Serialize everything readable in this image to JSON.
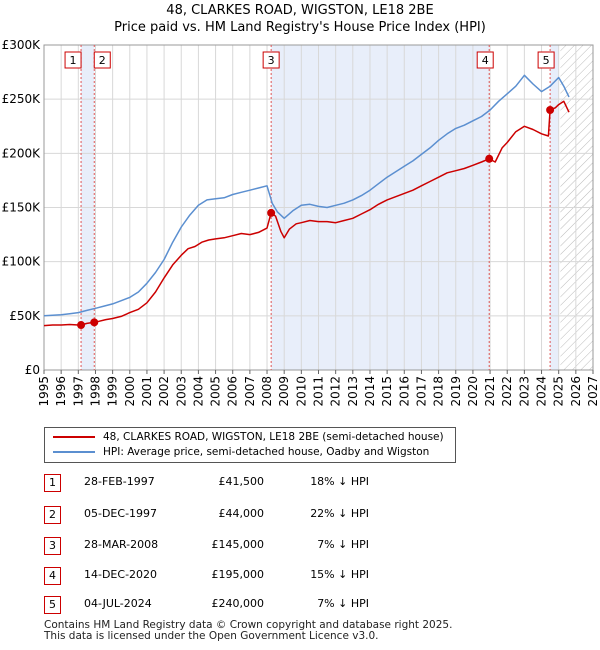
{
  "chart_data": {
    "type": "line",
    "title": "48, CLARKES ROAD, WIGSTON, LE18 2BE",
    "subtitle": "Price paid vs. HM Land Registry's House Price Index (HPI)",
    "xlim": [
      1995,
      2027
    ],
    "ylim": [
      0,
      300000
    ],
    "x_ticks": [
      "1995",
      "1996",
      "1997",
      "1998",
      "1999",
      "2000",
      "2001",
      "2002",
      "2003",
      "2004",
      "2005",
      "2006",
      "2007",
      "2008",
      "2009",
      "2010",
      "2011",
      "2012",
      "2013",
      "2014",
      "2015",
      "2016",
      "2017",
      "2018",
      "2019",
      "2020",
      "2021",
      "2022",
      "2023",
      "2024",
      "2025",
      "2026",
      "2027"
    ],
    "y_ticks": [
      {
        "value": 0,
        "label": "£0"
      },
      {
        "value": 50000,
        "label": "£50K"
      },
      {
        "value": 100000,
        "label": "£100K"
      },
      {
        "value": 150000,
        "label": "£150K"
      },
      {
        "value": 200000,
        "label": "£200K"
      },
      {
        "value": 250000,
        "label": "£250K"
      },
      {
        "value": 300000,
        "label": "£300K"
      }
    ],
    "grid": true,
    "shaded_regions": [
      {
        "from": 1997.16,
        "to": 1997.93,
        "color": "#e8eefa"
      },
      {
        "from": 2008.24,
        "to": 2020.95,
        "color": "#e8eefa"
      },
      {
        "from": 2024.5,
        "to": 2025.0,
        "color": "#e8eefa"
      }
    ],
    "future_from": 2025.1,
    "series": [
      {
        "name": "48, CLARKES ROAD, WIGSTON, LE18 2BE (semi-detached house)",
        "color": "#cc0000",
        "x": [
          1995.0,
          1995.5,
          1996.0,
          1996.5,
          1997.0,
          1997.16,
          1997.5,
          1997.93,
          1998.2,
          1998.6,
          1999.0,
          1999.5,
          2000.0,
          2000.5,
          2001.0,
          2001.5,
          2002.0,
          2002.5,
          2003.0,
          2003.4,
          2003.8,
          2004.2,
          2004.6,
          2005.0,
          2005.5,
          2006.0,
          2006.5,
          2007.0,
          2007.5,
          2008.0,
          2008.24,
          2008.5,
          2008.8,
          2009.0,
          2009.3,
          2009.7,
          2010.0,
          2010.5,
          2011.0,
          2011.5,
          2012.0,
          2012.5,
          2013.0,
          2013.5,
          2014.0,
          2014.5,
          2015.0,
          2015.5,
          2016.0,
          2016.5,
          2017.0,
          2017.5,
          2018.0,
          2018.5,
          2019.0,
          2019.5,
          2020.0,
          2020.5,
          2020.95,
          2021.3,
          2021.7,
          2022.0,
          2022.5,
          2023.0,
          2023.5,
          2024.0,
          2024.4,
          2024.5,
          2024.8,
          2025.0,
          2025.3,
          2025.6
        ],
        "y": [
          41000,
          41500,
          41500,
          42000,
          41500,
          41500,
          43000,
          44000,
          45000,
          46500,
          47500,
          49500,
          53000,
          56000,
          62000,
          72000,
          85000,
          97000,
          106000,
          112000,
          114000,
          118000,
          120000,
          121000,
          122000,
          124000,
          126000,
          125000,
          127000,
          131000,
          145000,
          142000,
          128000,
          122000,
          130000,
          135000,
          136000,
          138000,
          137000,
          137000,
          136000,
          138000,
          140000,
          144000,
          148000,
          153000,
          157000,
          160000,
          163000,
          166000,
          170000,
          174000,
          178000,
          182000,
          184000,
          186000,
          189000,
          192000,
          195000,
          192000,
          205000,
          210000,
          220000,
          225000,
          222000,
          218000,
          216000,
          240000,
          242000,
          245000,
          248000,
          238000
        ]
      },
      {
        "name": "HPI: Average price, semi-detached house, Oadby and Wigston",
        "color": "#5b8fd0",
        "x": [
          1995.0,
          1995.5,
          1996.0,
          1996.5,
          1997.0,
          1997.5,
          1998.0,
          1998.5,
          1999.0,
          1999.5,
          2000.0,
          2000.5,
          2001.0,
          2001.5,
          2002.0,
          2002.5,
          2003.0,
          2003.5,
          2004.0,
          2004.5,
          2005.0,
          2005.5,
          2006.0,
          2006.5,
          2007.0,
          2007.5,
          2008.0,
          2008.3,
          2008.6,
          2009.0,
          2009.5,
          2010.0,
          2010.5,
          2011.0,
          2011.5,
          2012.0,
          2012.5,
          2013.0,
          2013.5,
          2014.0,
          2014.5,
          2015.0,
          2015.5,
          2016.0,
          2016.5,
          2017.0,
          2017.5,
          2018.0,
          2018.5,
          2019.0,
          2019.5,
          2020.0,
          2020.5,
          2021.0,
          2021.5,
          2022.0,
          2022.5,
          2023.0,
          2023.5,
          2024.0,
          2024.5,
          2025.0,
          2025.3,
          2025.6
        ],
        "y": [
          50000,
          50500,
          51000,
          52000,
          53000,
          55000,
          57000,
          59000,
          61000,
          64000,
          67000,
          72000,
          80000,
          90000,
          102000,
          118000,
          132000,
          143000,
          152000,
          157000,
          158000,
          159000,
          162000,
          164000,
          166000,
          168000,
          170000,
          154000,
          146000,
          140000,
          147000,
          152000,
          153000,
          151000,
          150000,
          152000,
          154000,
          157000,
          161000,
          166000,
          172000,
          178000,
          183000,
          188000,
          193000,
          199000,
          205000,
          212000,
          218000,
          223000,
          226000,
          230000,
          234000,
          240000,
          248000,
          255000,
          262000,
          272000,
          264000,
          257000,
          262000,
          270000,
          262000,
          252000
        ]
      }
    ],
    "sales": [
      {
        "id": "1",
        "x": 1997.16,
        "y": 41500
      },
      {
        "id": "2",
        "x": 1997.93,
        "y": 44000
      },
      {
        "id": "3",
        "x": 2008.24,
        "y": 145000
      },
      {
        "id": "4",
        "x": 2020.95,
        "y": 195000
      },
      {
        "id": "5",
        "x": 2024.5,
        "y": 240000
      }
    ]
  },
  "legend": {
    "property_label": "48, CLARKES ROAD, WIGSTON, LE18 2BE (semi-detached house)",
    "hpi_label": "HPI: Average price, semi-detached house, Oadby and Wigston",
    "property_color": "#cc0000",
    "hpi_color": "#5b8fd0"
  },
  "sales_table": [
    {
      "num": "1",
      "date": "28-FEB-1997",
      "price": "£41,500",
      "hpi": "18% ↓ HPI"
    },
    {
      "num": "2",
      "date": "05-DEC-1997",
      "price": "£44,000",
      "hpi": "22% ↓ HPI"
    },
    {
      "num": "3",
      "date": "28-MAR-2008",
      "price": "£145,000",
      "hpi": "7% ↓ HPI"
    },
    {
      "num": "4",
      "date": "14-DEC-2020",
      "price": "£195,000",
      "hpi": "15% ↓ HPI"
    },
    {
      "num": "5",
      "date": "04-JUL-2024",
      "price": "£240,000",
      "hpi": "7% ↓ HPI"
    }
  ],
  "footer": {
    "line1": "Contains HM Land Registry data © Crown copyright and database right 2025.",
    "line2": "This data is licensed under the Open Government Licence v3.0."
  }
}
